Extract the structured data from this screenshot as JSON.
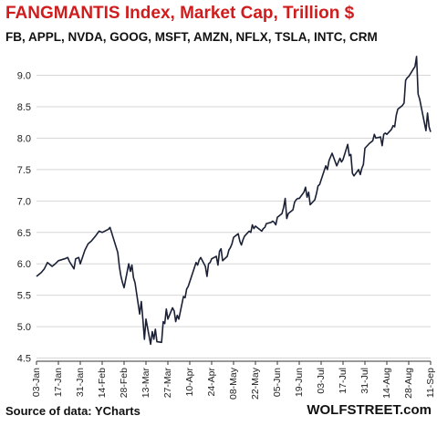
{
  "header": {
    "title": "FANGMANTIS Index, Market Cap, Trillion $",
    "subtitle": "FB, APPL, NVDA, GOOG, MSFT, AMZN, NFLX, TSLA, INTC, CRM"
  },
  "footer": {
    "source": "Source of data: YCharts",
    "brand": "WOLFSTREET.com"
  },
  "colors": {
    "title": "#d01c1c",
    "line": "#1a2036",
    "grid": "#d6d6d6",
    "axis": "#333333"
  },
  "chart_data": {
    "type": "line",
    "title": "FANGMANTIS Index, Market Cap, Trillion $",
    "subtitle": "FB, APPL, NVDA, GOOG, MSFT, AMZN, NFLX, TSLA, INTC, CRM",
    "xlabel": "",
    "ylabel": "",
    "ylim": [
      4.5,
      9.0
    ],
    "yticks": [
      4.5,
      5.0,
      5.5,
      6.0,
      6.5,
      7.0,
      7.5,
      8.0,
      8.5,
      9.0
    ],
    "xticks": [
      "03-Jan",
      "17-Jan",
      "31-Jan",
      "14-Feb",
      "28-Feb",
      "13-Mar",
      "27-Mar",
      "10-Apr",
      "24-Apr",
      "08-May",
      "22-May",
      "05-Jun",
      "19-Jun",
      "03-Jul",
      "17-Jul",
      "31-Jul",
      "14-Aug",
      "28-Aug",
      "11-Sep"
    ],
    "grid": "horizontal",
    "legend": "none",
    "series": [
      {
        "values": [
          [
            "2020-01-03",
            5.8
          ],
          [
            "2020-01-06",
            5.86
          ],
          [
            "2020-01-08",
            5.92
          ],
          [
            "2020-01-10",
            6.02
          ],
          [
            "2020-01-13",
            5.96
          ],
          [
            "2020-01-15",
            6.0
          ],
          [
            "2020-01-17",
            6.05
          ],
          [
            "2020-01-21",
            6.08
          ],
          [
            "2020-01-23",
            6.1
          ],
          [
            "2020-01-24",
            6.04
          ],
          [
            "2020-01-27",
            5.92
          ],
          [
            "2020-01-28",
            6.08
          ],
          [
            "2020-01-30",
            6.1
          ],
          [
            "2020-01-31",
            6.0
          ],
          [
            "2020-02-03",
            6.22
          ],
          [
            "2020-02-05",
            6.32
          ],
          [
            "2020-02-07",
            6.36
          ],
          [
            "2020-02-10",
            6.45
          ],
          [
            "2020-02-12",
            6.52
          ],
          [
            "2020-02-14",
            6.5
          ],
          [
            "2020-02-18",
            6.55
          ],
          [
            "2020-02-19",
            6.58
          ],
          [
            "2020-02-21",
            6.42
          ],
          [
            "2020-02-24",
            6.18
          ],
          [
            "2020-02-25",
            5.95
          ],
          [
            "2020-02-26",
            5.8
          ],
          [
            "2020-02-27",
            5.7
          ],
          [
            "2020-02-28",
            5.62
          ],
          [
            "2020-03-02",
            6.0
          ],
          [
            "2020-03-03",
            5.88
          ],
          [
            "2020-03-04",
            5.98
          ],
          [
            "2020-03-05",
            5.78
          ],
          [
            "2020-03-06",
            5.7
          ],
          [
            "2020-03-09",
            5.2
          ],
          [
            "2020-03-10",
            5.4
          ],
          [
            "2020-03-11",
            5.12
          ],
          [
            "2020-03-12",
            4.8
          ],
          [
            "2020-03-13",
            5.12
          ],
          [
            "2020-03-16",
            4.72
          ],
          [
            "2020-03-17",
            4.92
          ],
          [
            "2020-03-18",
            4.8
          ],
          [
            "2020-03-19",
            4.96
          ],
          [
            "2020-03-20",
            4.76
          ],
          [
            "2020-03-23",
            4.75
          ],
          [
            "2020-03-24",
            5.08
          ],
          [
            "2020-03-25",
            5.05
          ],
          [
            "2020-03-26",
            5.28
          ],
          [
            "2020-03-27",
            5.12
          ],
          [
            "2020-03-30",
            5.3
          ],
          [
            "2020-03-31",
            5.25
          ],
          [
            "2020-04-01",
            5.08
          ],
          [
            "2020-04-02",
            5.18
          ],
          [
            "2020-04-03",
            5.12
          ],
          [
            "2020-04-06",
            5.48
          ],
          [
            "2020-04-07",
            5.46
          ],
          [
            "2020-04-08",
            5.6
          ],
          [
            "2020-04-09",
            5.64
          ],
          [
            "2020-04-13",
            5.94
          ],
          [
            "2020-04-14",
            6.02
          ],
          [
            "2020-04-15",
            5.98
          ],
          [
            "2020-04-16",
            6.06
          ],
          [
            "2020-04-17",
            6.1
          ],
          [
            "2020-04-20",
            5.96
          ],
          [
            "2020-04-21",
            5.8
          ],
          [
            "2020-04-22",
            6.0
          ],
          [
            "2020-04-23",
            6.02
          ],
          [
            "2020-04-24",
            6.08
          ],
          [
            "2020-04-27",
            6.12
          ],
          [
            "2020-04-28",
            5.98
          ],
          [
            "2020-04-29",
            6.2
          ],
          [
            "2020-04-30",
            6.24
          ],
          [
            "2020-05-01",
            6.05
          ],
          [
            "2020-05-04",
            6.12
          ],
          [
            "2020-05-05",
            6.22
          ],
          [
            "2020-05-06",
            6.26
          ],
          [
            "2020-05-07",
            6.32
          ],
          [
            "2020-05-08",
            6.42
          ],
          [
            "2020-05-11",
            6.48
          ],
          [
            "2020-05-12",
            6.36
          ],
          [
            "2020-05-13",
            6.3
          ],
          [
            "2020-05-14",
            6.38
          ],
          [
            "2020-05-15",
            6.44
          ],
          [
            "2020-05-18",
            6.52
          ],
          [
            "2020-05-19",
            6.5
          ],
          [
            "2020-05-20",
            6.62
          ],
          [
            "2020-05-21",
            6.56
          ],
          [
            "2020-05-22",
            6.6
          ],
          [
            "2020-05-26",
            6.52
          ],
          [
            "2020-05-27",
            6.56
          ],
          [
            "2020-05-28",
            6.58
          ],
          [
            "2020-05-29",
            6.64
          ],
          [
            "2020-06-01",
            6.66
          ],
          [
            "2020-06-02",
            6.68
          ],
          [
            "2020-06-03",
            6.66
          ],
          [
            "2020-06-04",
            6.62
          ],
          [
            "2020-06-05",
            6.74
          ],
          [
            "2020-06-08",
            6.8
          ],
          [
            "2020-06-09",
            6.9
          ],
          [
            "2020-06-10",
            7.04
          ],
          [
            "2020-06-11",
            6.72
          ],
          [
            "2020-06-12",
            6.8
          ],
          [
            "2020-06-15",
            6.86
          ],
          [
            "2020-06-16",
            6.98
          ],
          [
            "2020-06-17",
            7.02
          ],
          [
            "2020-06-18",
            7.04
          ],
          [
            "2020-06-19",
            7.04
          ],
          [
            "2020-06-22",
            7.14
          ],
          [
            "2020-06-23",
            7.22
          ],
          [
            "2020-06-24",
            7.06
          ],
          [
            "2020-06-25",
            7.14
          ],
          [
            "2020-06-26",
            6.94
          ],
          [
            "2020-06-29",
            7.02
          ],
          [
            "2020-06-30",
            7.12
          ],
          [
            "2020-07-01",
            7.24
          ],
          [
            "2020-07-02",
            7.26
          ],
          [
            "2020-07-06",
            7.56
          ],
          [
            "2020-07-07",
            7.5
          ],
          [
            "2020-07-08",
            7.64
          ],
          [
            "2020-07-09",
            7.7
          ],
          [
            "2020-07-10",
            7.76
          ],
          [
            "2020-07-13",
            7.56
          ],
          [
            "2020-07-14",
            7.62
          ],
          [
            "2020-07-15",
            7.68
          ],
          [
            "2020-07-16",
            7.62
          ],
          [
            "2020-07-17",
            7.66
          ],
          [
            "2020-07-20",
            7.9
          ],
          [
            "2020-07-21",
            7.72
          ],
          [
            "2020-07-22",
            7.74
          ],
          [
            "2020-07-23",
            7.44
          ],
          [
            "2020-07-24",
            7.4
          ],
          [
            "2020-07-27",
            7.5
          ],
          [
            "2020-07-28",
            7.42
          ],
          [
            "2020-07-29",
            7.52
          ],
          [
            "2020-07-30",
            7.58
          ],
          [
            "2020-07-31",
            7.84
          ],
          [
            "2020-08-03",
            7.92
          ],
          [
            "2020-08-04",
            7.94
          ],
          [
            "2020-08-05",
            7.96
          ],
          [
            "2020-08-06",
            8.06
          ],
          [
            "2020-08-07",
            8.0
          ],
          [
            "2020-08-10",
            8.02
          ],
          [
            "2020-08-11",
            7.88
          ],
          [
            "2020-08-12",
            8.06
          ],
          [
            "2020-08-13",
            8.08
          ],
          [
            "2020-08-14",
            8.06
          ],
          [
            "2020-08-17",
            8.14
          ],
          [
            "2020-08-18",
            8.2
          ],
          [
            "2020-08-19",
            8.18
          ],
          [
            "2020-08-20",
            8.36
          ],
          [
            "2020-08-21",
            8.46
          ],
          [
            "2020-08-24",
            8.52
          ],
          [
            "2020-08-25",
            8.56
          ],
          [
            "2020-08-26",
            8.92
          ],
          [
            "2020-08-27",
            8.96
          ],
          [
            "2020-08-28",
            8.98
          ],
          [
            "2020-08-31",
            9.1
          ],
          [
            "2020-09-01",
            9.14
          ],
          [
            "2020-09-02",
            9.3
          ],
          [
            "2020-09-03",
            8.7
          ],
          [
            "2020-09-04",
            8.62
          ],
          [
            "2020-09-08",
            8.12
          ],
          [
            "2020-09-09",
            8.4
          ],
          [
            "2020-09-10",
            8.18
          ],
          [
            "2020-09-11",
            8.1
          ]
        ]
      }
    ]
  }
}
